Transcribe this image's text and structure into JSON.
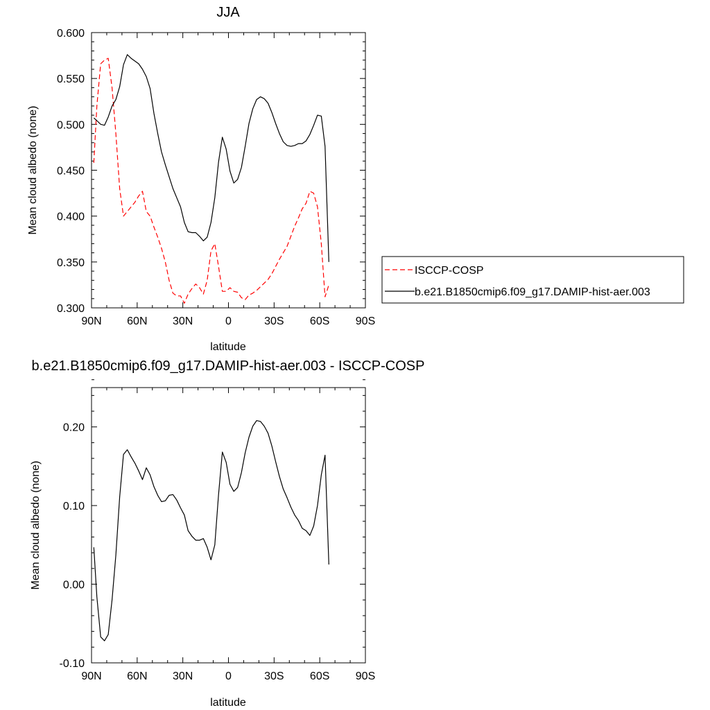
{
  "chart_data": [
    {
      "type": "line",
      "title": "JJA",
      "xlabel": "latitude",
      "ylabel": "Mean cloud albedo (none)",
      "xlim": [
        -90,
        90
      ],
      "ylim": [
        0.3,
        0.6
      ],
      "x_ticks": [
        {
          "value": -90,
          "label": "90N"
        },
        {
          "value": -60,
          "label": "60N"
        },
        {
          "value": -30,
          "label": "30N"
        },
        {
          "value": 0,
          "label": "0"
        },
        {
          "value": 30,
          "label": "30S"
        },
        {
          "value": 60,
          "label": "60S"
        },
        {
          "value": 90,
          "label": "90S"
        }
      ],
      "y_ticks": [
        {
          "value": 0.3,
          "label": "0.300"
        },
        {
          "value": 0.35,
          "label": "0.350"
        },
        {
          "value": 0.4,
          "label": "0.400"
        },
        {
          "value": 0.45,
          "label": "0.450"
        },
        {
          "value": 0.5,
          "label": "0.500"
        },
        {
          "value": 0.55,
          "label": "0.550"
        },
        {
          "value": 0.6,
          "label": "0.600"
        }
      ],
      "legend": "right",
      "series": [
        {
          "name": "ISCCP-COSP",
          "color": "#ff0000",
          "dash": "dashed",
          "x": [
            -88.5,
            -86.5,
            -84,
            -81.5,
            -79,
            -76.5,
            -74,
            -71.5,
            -69,
            -66.5,
            -64,
            -61.5,
            -59,
            -56.5,
            -54,
            -51.5,
            -49,
            -46.5,
            -44,
            -41.5,
            -39,
            -36.5,
            -34,
            -31.5,
            -29,
            -26.5,
            -24,
            -21.5,
            -19,
            -16.5,
            -14,
            -11.5,
            -9,
            -6.5,
            -4,
            -1.5,
            1,
            3.5,
            6,
            8.5,
            11,
            13.5,
            16,
            18.5,
            21,
            23.5,
            26,
            28.5,
            31,
            33.5,
            36,
            38.5,
            41,
            43.5,
            46,
            48.5,
            51,
            53.5,
            56,
            58.5,
            61,
            63.5,
            66
          ],
          "y": [
            0.458,
            0.52,
            0.566,
            0.57,
            0.572,
            0.54,
            0.49,
            0.43,
            0.4,
            0.405,
            0.41,
            0.415,
            0.422,
            0.427,
            0.405,
            0.4,
            0.388,
            0.377,
            0.365,
            0.35,
            0.33,
            0.316,
            0.313,
            0.313,
            0.305,
            0.315,
            0.321,
            0.326,
            0.322,
            0.315,
            0.33,
            0.362,
            0.37,
            0.345,
            0.318,
            0.318,
            0.322,
            0.318,
            0.317,
            0.311,
            0.309,
            0.314,
            0.316,
            0.319,
            0.323,
            0.327,
            0.331,
            0.337,
            0.345,
            0.353,
            0.36,
            0.367,
            0.378,
            0.389,
            0.398,
            0.408,
            0.414,
            0.427,
            0.425,
            0.41,
            0.37,
            0.312,
            0.325
          ]
        },
        {
          "name": "b.e21.B1850cmip6.f09_g17.DAMIP-hist-aer.003",
          "color": "#000000",
          "dash": "solid",
          "x": [
            -88.5,
            -86.5,
            -84,
            -81.5,
            -79,
            -76.5,
            -74,
            -71.5,
            -69,
            -66.5,
            -64,
            -61.5,
            -59,
            -56.5,
            -54,
            -51.5,
            -49,
            -46.5,
            -44,
            -41.5,
            -39,
            -36.5,
            -34,
            -31.5,
            -29,
            -26.5,
            -24,
            -21.5,
            -19,
            -16.5,
            -14,
            -11.5,
            -9,
            -6.5,
            -4,
            -1.5,
            1,
            3.5,
            6,
            8.5,
            11,
            13.5,
            16,
            18.5,
            21,
            23.5,
            26,
            28.5,
            31,
            33.5,
            36,
            38.5,
            41,
            43.5,
            46,
            48.5,
            51,
            53.5,
            56,
            58.5,
            61,
            63.5,
            66
          ],
          "y": [
            0.507,
            0.504,
            0.5,
            0.499,
            0.508,
            0.52,
            0.527,
            0.541,
            0.565,
            0.576,
            0.572,
            0.569,
            0.566,
            0.56,
            0.552,
            0.539,
            0.512,
            0.49,
            0.47,
            0.456,
            0.443,
            0.43,
            0.42,
            0.41,
            0.393,
            0.383,
            0.382,
            0.382,
            0.378,
            0.373,
            0.377,
            0.393,
            0.42,
            0.459,
            0.486,
            0.473,
            0.449,
            0.436,
            0.44,
            0.453,
            0.476,
            0.501,
            0.517,
            0.527,
            0.53,
            0.528,
            0.523,
            0.513,
            0.501,
            0.49,
            0.481,
            0.477,
            0.476,
            0.477,
            0.479,
            0.479,
            0.482,
            0.489,
            0.499,
            0.51,
            0.509,
            0.476,
            0.35
          ]
        }
      ]
    },
    {
      "type": "line",
      "title": "b.e21.B1850cmip6.f09_g17.DAMIP-hist-aer.003 - ISCCP-COSP",
      "xlabel": "latitude",
      "ylabel": "Mean cloud albedo (none)",
      "xlim": [
        -90,
        90
      ],
      "ylim": [
        -0.1,
        0.25
      ],
      "x_ticks": [
        {
          "value": -90,
          "label": "90N"
        },
        {
          "value": -60,
          "label": "60N"
        },
        {
          "value": -30,
          "label": "30N"
        },
        {
          "value": 0,
          "label": "0"
        },
        {
          "value": 30,
          "label": "30S"
        },
        {
          "value": 60,
          "label": "60S"
        },
        {
          "value": 90,
          "label": "90S"
        }
      ],
      "y_ticks": [
        {
          "value": -0.1,
          "label": "-0.10"
        },
        {
          "value": 0.0,
          "label": "0.00"
        },
        {
          "value": 0.1,
          "label": "0.10"
        },
        {
          "value": 0.2,
          "label": "0.20"
        }
      ],
      "series": [
        {
          "color": "#000000",
          "dash": "solid",
          "x": [
            -88.5,
            -86.5,
            -84,
            -81.5,
            -79,
            -76.5,
            -74,
            -71.5,
            -69,
            -66.5,
            -64,
            -61.5,
            -59,
            -56.5,
            -54,
            -51.5,
            -49,
            -46.5,
            -44,
            -41.5,
            -39,
            -36.5,
            -34,
            -31.5,
            -29,
            -26.5,
            -24,
            -21.5,
            -19,
            -16.5,
            -14,
            -11.5,
            -9,
            -6.5,
            -4,
            -1.5,
            1,
            3.5,
            6,
            8.5,
            11,
            13.5,
            16,
            18.5,
            21,
            23.5,
            26,
            28.5,
            31,
            33.5,
            36,
            38.5,
            41,
            43.5,
            46,
            48.5,
            51,
            53.5,
            56,
            58.5,
            61,
            63.5,
            66
          ],
          "y": [
            0.047,
            -0.016,
            -0.067,
            -0.072,
            -0.064,
            -0.02,
            0.037,
            0.111,
            0.165,
            0.171,
            0.162,
            0.154,
            0.144,
            0.133,
            0.148,
            0.139,
            0.124,
            0.113,
            0.105,
            0.106,
            0.113,
            0.114,
            0.107,
            0.097,
            0.088,
            0.068,
            0.061,
            0.056,
            0.056,
            0.058,
            0.047,
            0.031,
            0.05,
            0.114,
            0.168,
            0.155,
            0.127,
            0.118,
            0.123,
            0.142,
            0.167,
            0.187,
            0.201,
            0.208,
            0.207,
            0.201,
            0.192,
            0.176,
            0.156,
            0.137,
            0.121,
            0.11,
            0.098,
            0.088,
            0.081,
            0.071,
            0.068,
            0.062,
            0.074,
            0.1,
            0.139,
            0.164,
            0.025
          ]
        }
      ]
    }
  ]
}
